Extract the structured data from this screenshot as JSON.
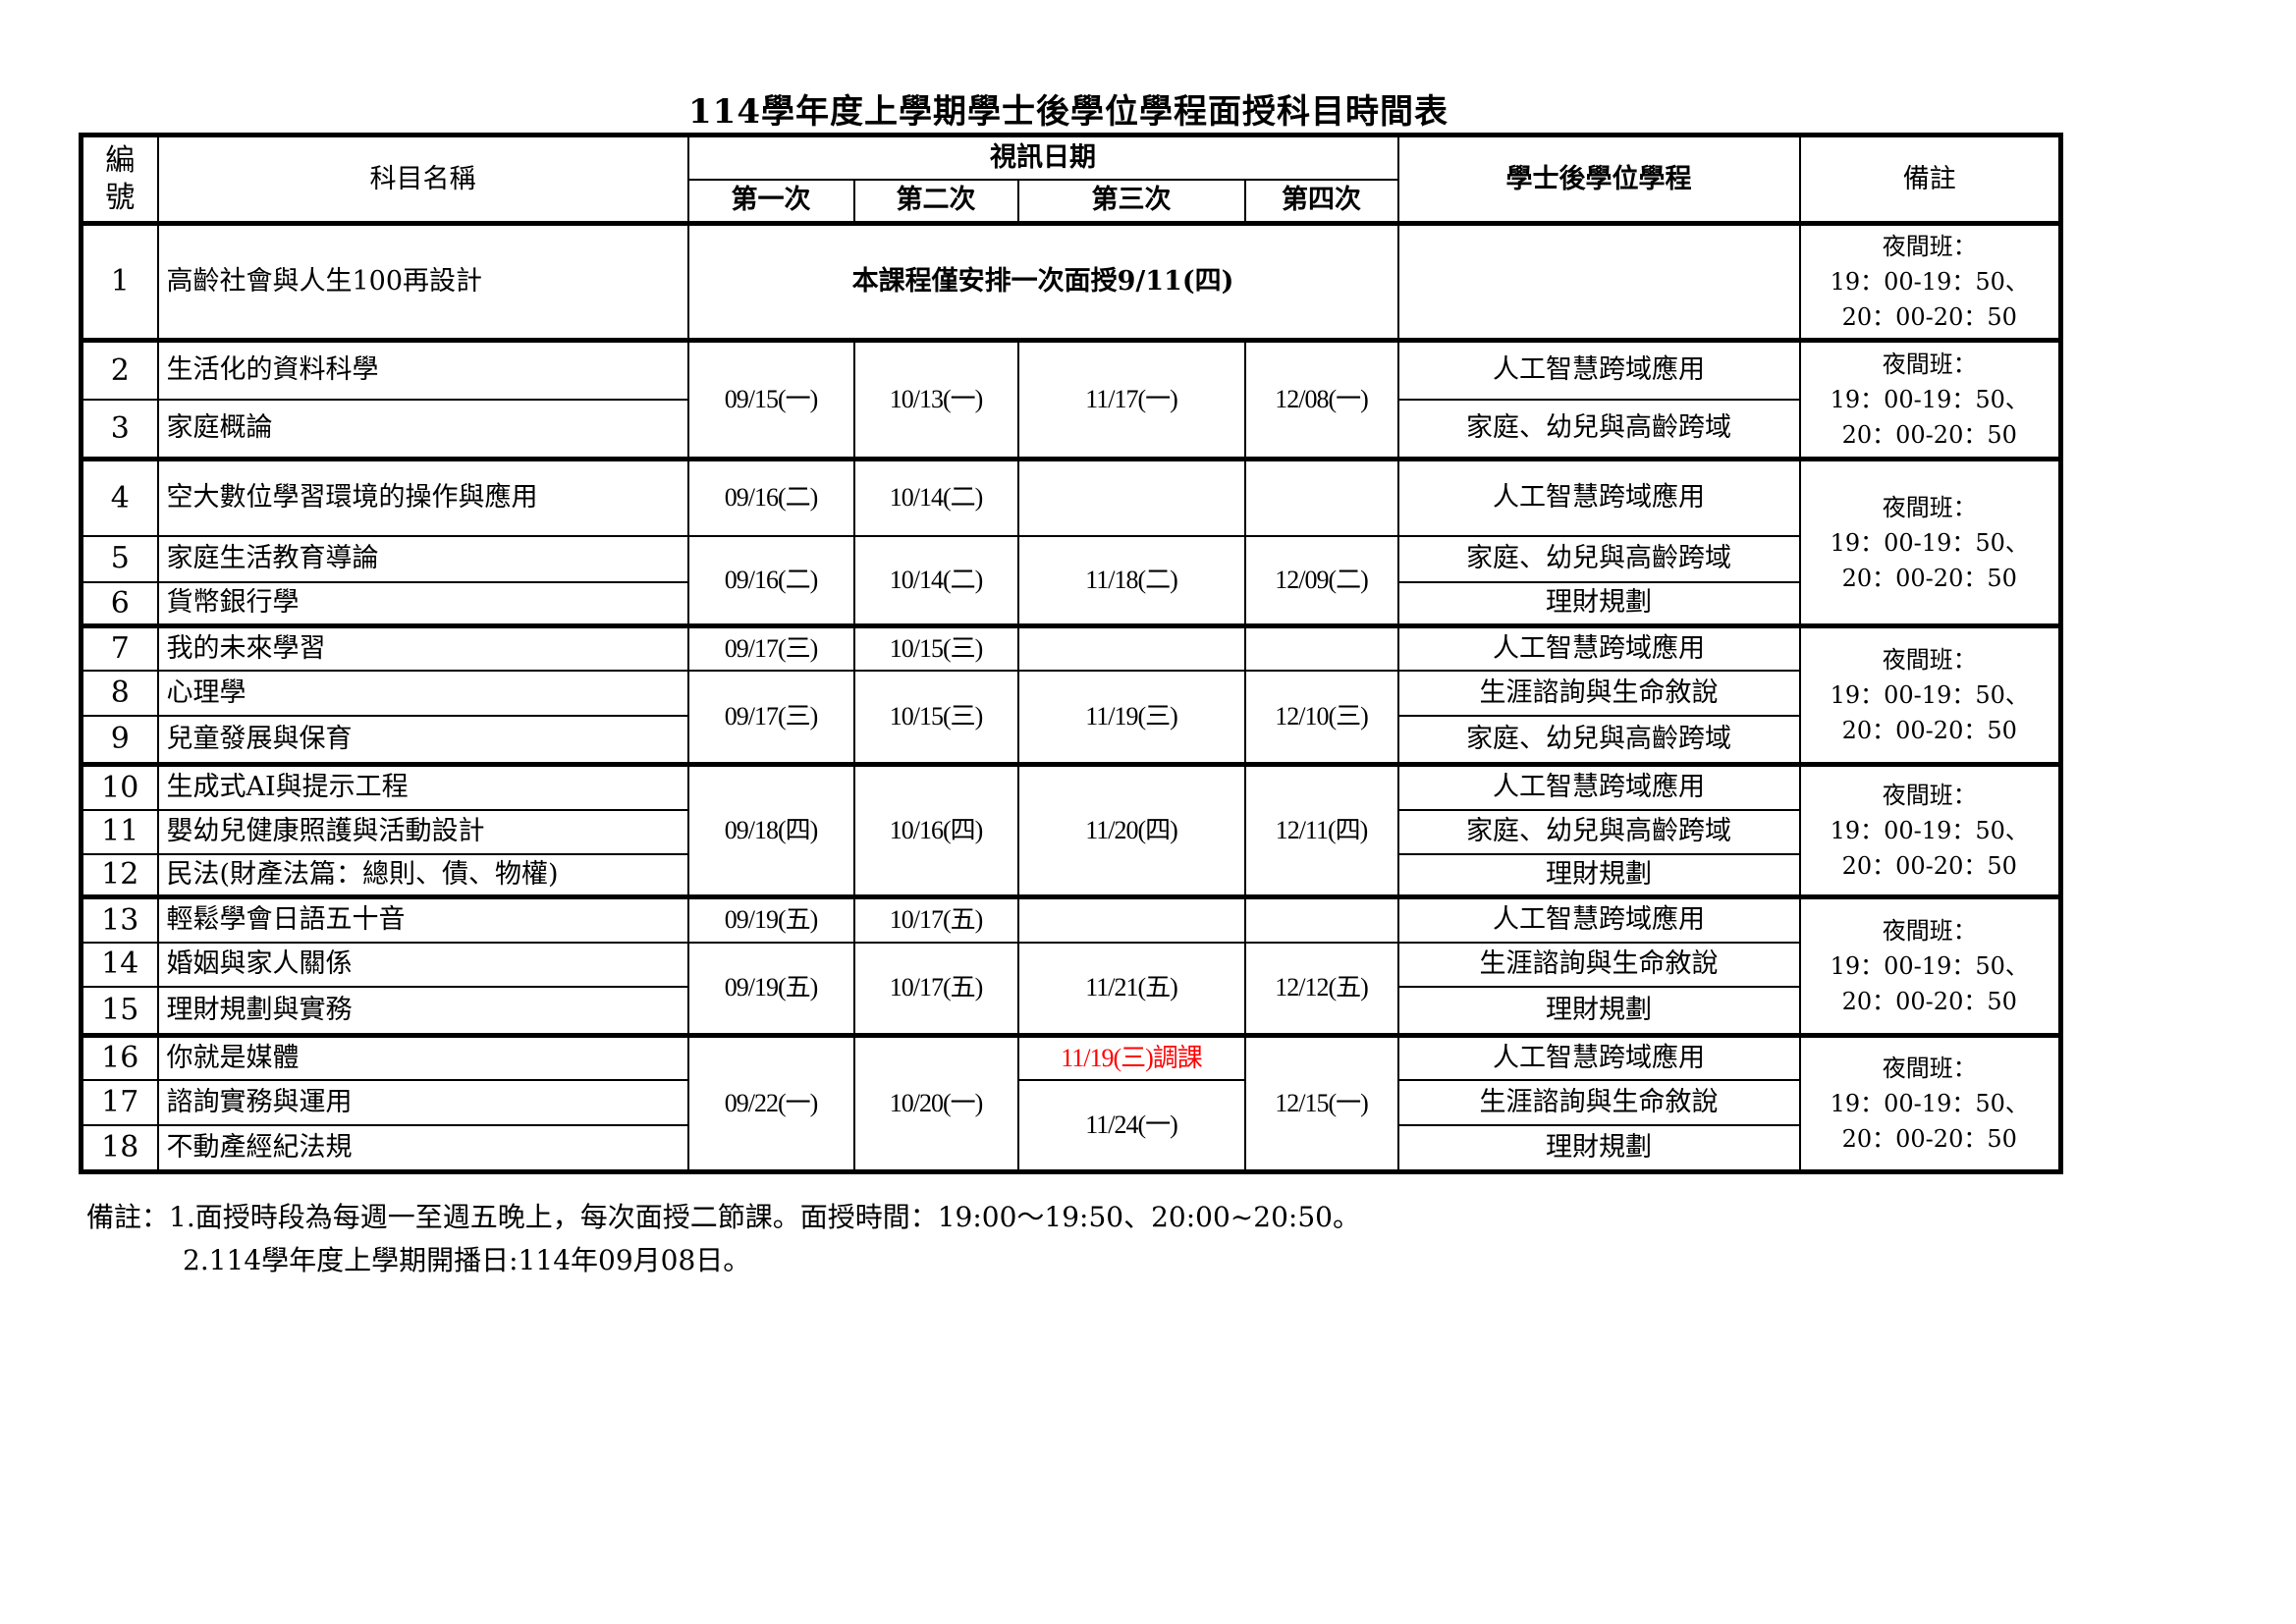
{
  "title": "114學年度上學期學士後學位學程面授科目時間表",
  "header": {
    "no": "編號",
    "subject": "科目名稱",
    "video_dates": "視訊日期",
    "first": "第一次",
    "second": "第二次",
    "third": "第三次",
    "fourth": "第四次",
    "program": "學士後學位學程",
    "remark": "備註"
  },
  "remark": [
    "夜間班：",
    "19：00-19：50、",
    "20：00-20：50"
  ],
  "rows": [
    {
      "no": "1",
      "name": "高齡社會與人生100再設計",
      "program": ""
    },
    {
      "no": "2",
      "name": "生活化的資料科學",
      "program": "人工智慧跨域應用"
    },
    {
      "no": "3",
      "name": "家庭概論",
      "program": "家庭、幼兒與高齡跨域"
    },
    {
      "no": "4",
      "name": "空大數位學習環境的操作與應用",
      "program": "人工智慧跨域應用"
    },
    {
      "no": "5",
      "name": "家庭生活教育導論",
      "program": "家庭、幼兒與高齡跨域"
    },
    {
      "no": "6",
      "name": "貨幣銀行學",
      "program": "理財規劃"
    },
    {
      "no": "7",
      "name": "我的未來學習",
      "program": "人工智慧跨域應用"
    },
    {
      "no": "8",
      "name": "心理學",
      "program": "生涯諮詢與生命敘說"
    },
    {
      "no": "9",
      "name": "兒童發展與保育",
      "program": "家庭、幼兒與高齡跨域"
    },
    {
      "no": "10",
      "name": "生成式AI與提示工程",
      "program": "人工智慧跨域應用"
    },
    {
      "no": "11",
      "name": "嬰幼兒健康照護與活動設計",
      "program": "家庭、幼兒與高齡跨域"
    },
    {
      "no": "12",
      "name": "民法(財產法篇：總則、債、物權)",
      "program": "理財規劃"
    },
    {
      "no": "13",
      "name": "輕鬆學會日語五十音",
      "program": "人工智慧跨域應用"
    },
    {
      "no": "14",
      "name": "婚姻與家人關係",
      "program": "生涯諮詢與生命敘說"
    },
    {
      "no": "15",
      "name": "理財規劃與實務",
      "program": "理財規劃"
    },
    {
      "no": "16",
      "name": "你就是媒體",
      "program": "人工智慧跨域應用"
    },
    {
      "no": "17",
      "name": "諮詢實務與運用",
      "program": "生涯諮詢與生命敘說"
    },
    {
      "no": "18",
      "name": "不動產經紀法規",
      "program": "理財規劃"
    }
  ],
  "dates": {
    "r1": "本課程僅安排一次面授9/11(四)",
    "r2_3": [
      "09/15(一)",
      "10/13(一)",
      "11/17(一)",
      "12/08(一)"
    ],
    "r4": [
      "09/16(二)",
      "10/14(二)",
      "",
      ""
    ],
    "r5_6": [
      "09/16(二)",
      "10/14(二)",
      "11/18(二)",
      "12/09(二)"
    ],
    "r7": [
      "09/17(三)",
      "10/15(三)",
      "",
      ""
    ],
    "r8_9": [
      "09/17(三)",
      "10/15(三)",
      "11/19(三)",
      "12/10(三)"
    ],
    "r10_12": [
      "09/18(四)",
      "10/16(四)",
      "11/20(四)",
      "12/11(四)"
    ],
    "r13": [
      "09/19(五)",
      "10/17(五)",
      "",
      ""
    ],
    "r14_15": [
      "09/19(五)",
      "10/17(五)",
      "11/21(五)",
      "12/12(五)"
    ],
    "r16_18": [
      "09/22(一)",
      "10/20(一)",
      "11/19(三)調課",
      "12/15(一)"
    ],
    "r17_18_third": "11/24(一)"
  },
  "notes": {
    "line1": "備註：1.面授時段為每週一至週五晚上，每次面授二節課。面授時間：19:00～19:50、20:00~20:50。",
    "line2": "2.114學年度上學期開播日:114年09月08日。"
  },
  "colors": {
    "reschedule": "#ff0000"
  }
}
